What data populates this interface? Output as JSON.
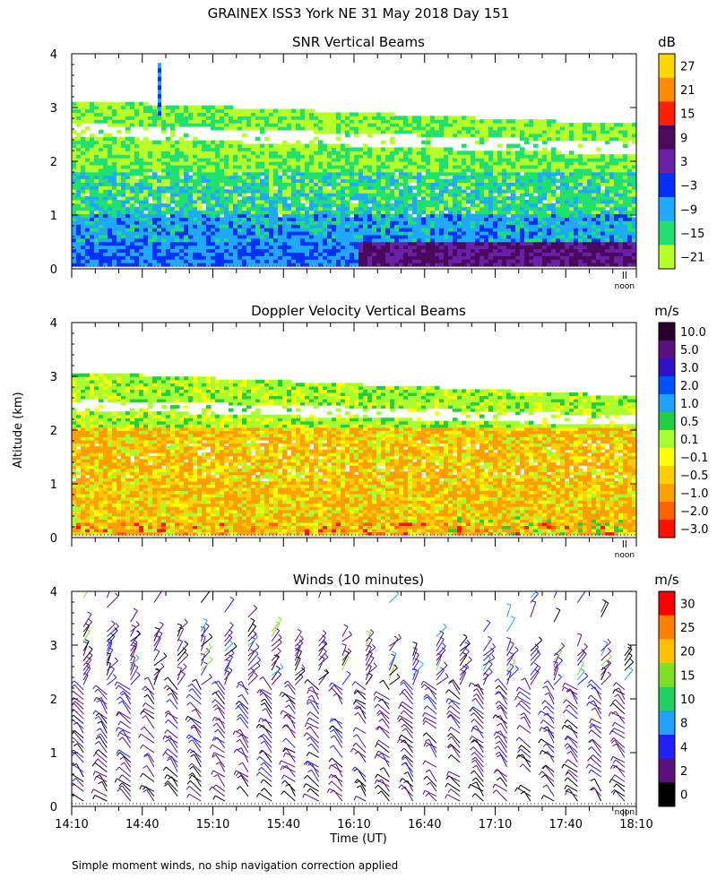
{
  "figure": {
    "title": "GRAINEX ISS3 York NE  31 May 2018 Day 151",
    "y_axis_label": "Altitude (km)",
    "x_axis_label": "Time (UT)",
    "footnote": "Simple moment winds, no ship navigation correction applied"
  },
  "chart_data": [
    {
      "type": "heatmap",
      "title": "SNR Vertical Beams",
      "ylabel": "Altitude (km)",
      "ylim": [
        0,
        4
      ],
      "yticks": [
        "0",
        "1",
        "2",
        "3",
        "4"
      ],
      "xlim_minutes_ut": [
        850,
        1090
      ],
      "noon_marker": {
        "minute_ut": 1085,
        "label": "noon"
      },
      "colorbar": {
        "unit": "dB",
        "labels": [
          "27",
          "21",
          "15",
          "9",
          "3",
          "−3",
          "−9",
          "−15",
          "−21"
        ],
        "colors": [
          "#ffd700",
          "#ff8c00",
          "#ff2000",
          "#4a0a5c",
          "#6a1fa8",
          "#0030ff",
          "#1fa9ff",
          "#20e070",
          "#b8ff28"
        ]
      }
    },
    {
      "type": "heatmap",
      "title": "Doppler Velocity Vertical Beams",
      "ylabel": "Altitude (km)",
      "ylim": [
        0,
        4
      ],
      "yticks": [
        "0",
        "1",
        "2",
        "3",
        "4"
      ],
      "xlim_minutes_ut": [
        850,
        1090
      ],
      "noon_marker": {
        "minute_ut": 1085,
        "label": "noon"
      },
      "colorbar": {
        "unit": "m/s",
        "labels": [
          "10.0",
          "5.0",
          "3.0",
          "2.0",
          "1.0",
          "0.5",
          "0.1",
          "−0.1",
          "−0.5",
          "−1.0",
          "−2.0",
          "−3.0"
        ],
        "colors": [
          "#2a0030",
          "#5a1080",
          "#3010c8",
          "#0050ff",
          "#20a0ff",
          "#20d040",
          "#a8ff30",
          "#ffff00",
          "#ffd000",
          "#ffa000",
          "#ff6000",
          "#ff1000"
        ]
      }
    },
    {
      "type": "scatter",
      "title": "Winds (10 minutes)",
      "ylabel": "Altitude (km)",
      "xlabel": "Time (UT)",
      "ylim": [
        0,
        4
      ],
      "yticks": [
        "0",
        "1",
        "2",
        "3",
        "4"
      ],
      "xlim_minutes_ut": [
        850,
        1090
      ],
      "xticks": [
        "14:10",
        "14:40",
        "15:10",
        "15:40",
        "16:10",
        "16:40",
        "17:10",
        "17:40",
        "18:10"
      ],
      "noon_marker": {
        "minute_ut": 1085,
        "label": "noon"
      },
      "colorbar": {
        "unit": "m/s",
        "labels": [
          "30",
          "25",
          "20",
          "15",
          "10",
          "8",
          "4",
          "2",
          "0"
        ],
        "colors": [
          "#ff0000",
          "#ff8000",
          "#ffc000",
          "#80e020",
          "#20d060",
          "#20a0ff",
          "#2020ff",
          "#5a1080",
          "#000000"
        ]
      }
    }
  ]
}
